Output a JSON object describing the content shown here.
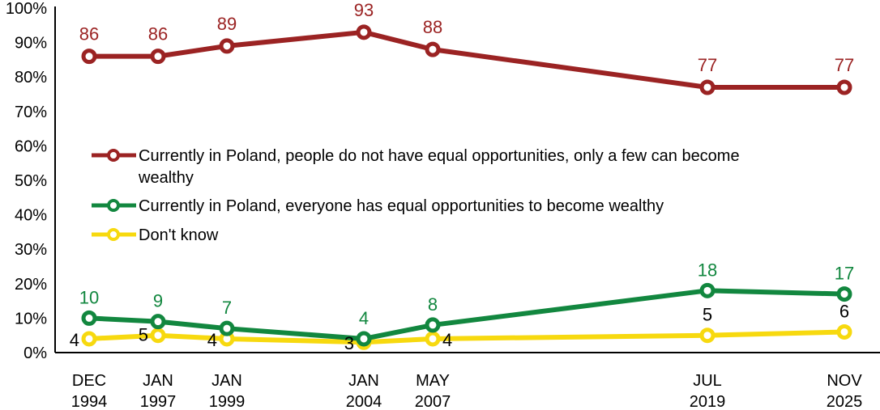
{
  "chart_data": {
    "type": "line",
    "title": "",
    "xlabel": "",
    "ylabel": "",
    "ylim": [
      0,
      100
    ],
    "yticks": [
      "0%",
      "10%",
      "20%",
      "30%",
      "40%",
      "50%",
      "60%",
      "70%",
      "80%",
      "90%",
      "100%"
    ],
    "categories": [
      "DEC 1994",
      "JAN 1997",
      "JAN 1999",
      "JAN 2004",
      "MAY 2007",
      "JUL 2019",
      "NOV 2025"
    ],
    "category_lines": [
      [
        "DEC",
        "1994"
      ],
      [
        "JAN",
        "1997"
      ],
      [
        "JAN",
        "1999"
      ],
      [
        "JAN",
        "2004"
      ],
      [
        "MAY",
        "2007"
      ],
      [
        "JUL",
        "2019"
      ],
      [
        "NOV",
        "2025"
      ]
    ],
    "grid": false,
    "legend_position": "inside-center-left",
    "series": [
      {
        "name": "Currently in Poland, people do not have equal opportunities, only a few can become wealthy",
        "legend_lines": [
          "Currently in Poland, people do not have equal opportunities, only a few can become",
          "wealthy"
        ],
        "color": "#9b2323",
        "label_color": "#9b2323",
        "values": [
          86,
          86,
          89,
          93,
          88,
          77,
          77
        ]
      },
      {
        "name": "Currently in Poland, everyone has equal opportunities to become wealthy",
        "legend_lines": [
          "Currently in Poland, everyone has equal opportunities to become wealthy"
        ],
        "color": "#12873f",
        "label_color": "#12873f",
        "values": [
          10,
          9,
          7,
          4,
          8,
          18,
          17
        ]
      },
      {
        "name": "Don't know",
        "legend_lines": [
          "Don't know"
        ],
        "color": "#f7d90f",
        "label_color": "#000000",
        "values": [
          4,
          5,
          4,
          3,
          4,
          5,
          6
        ]
      }
    ]
  }
}
